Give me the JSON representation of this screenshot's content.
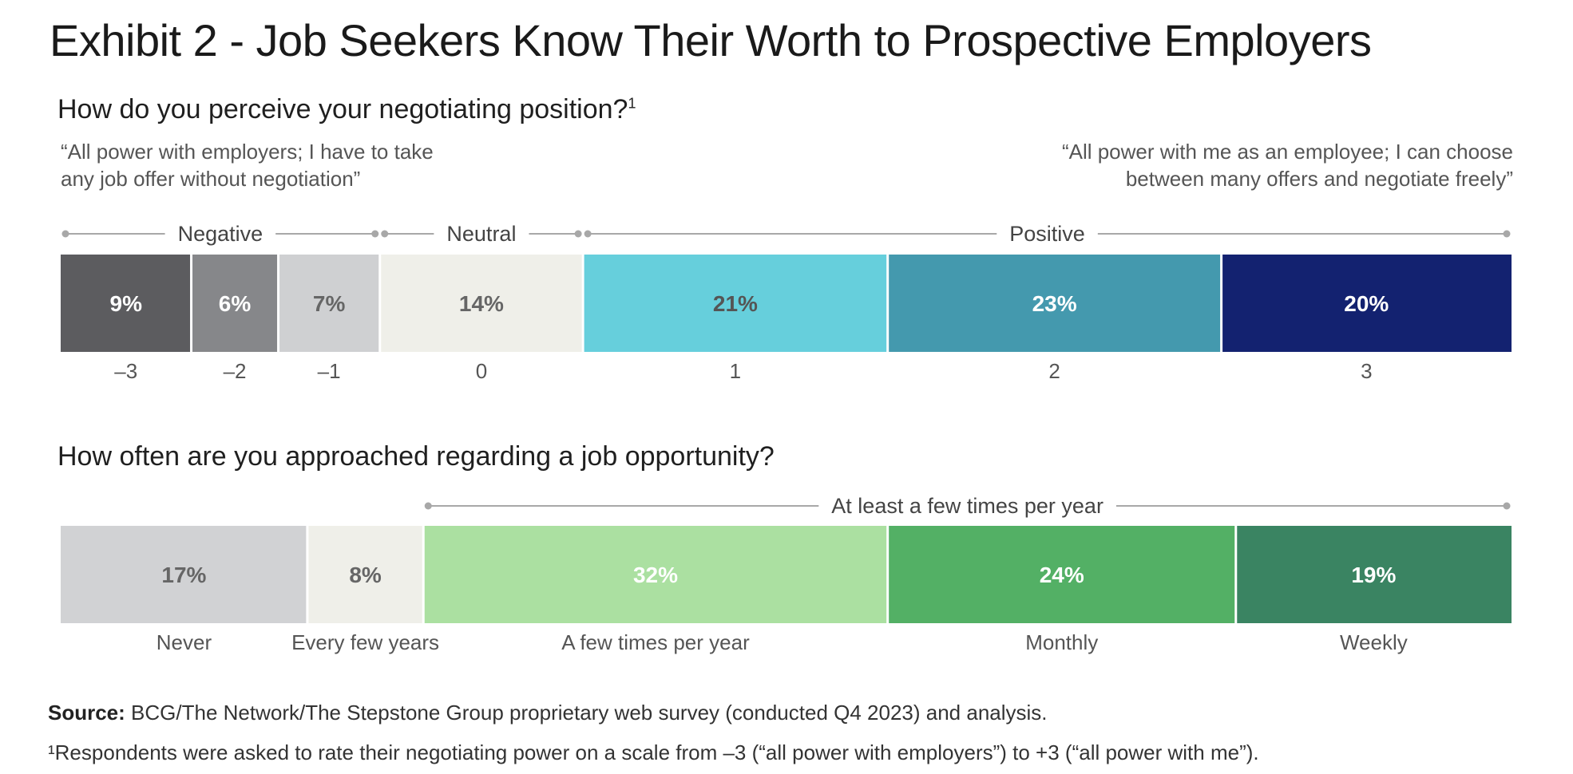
{
  "title": "Exhibit 2 - Job Seekers Know Their Worth to Prospective Employers",
  "chart_data": [
    {
      "type": "bar",
      "orientation": "horizontal-stacked",
      "question": "How do you perceive your negotiating position?",
      "question_footnote_marker": "1",
      "left_quote": [
        "“All power with employers; I have to take",
        "any job offer without negotiation”"
      ],
      "right_quote": [
        "“All power with me as an employee; I can choose",
        "between many offers and negotiate freely”"
      ],
      "categories": [
        "–3",
        "–2",
        "–1",
        "0",
        "1",
        "2",
        "3"
      ],
      "values": [
        9,
        6,
        7,
        14,
        21,
        23,
        20
      ],
      "value_labels": [
        "9%",
        "6%",
        "7%",
        "14%",
        "21%",
        "23%",
        "20%"
      ],
      "colors": [
        "#5c5c5f",
        "#86878a",
        "#cfd0d2",
        "#efefe9",
        "#66cfdc",
        "#4499ae",
        "#132270"
      ],
      "label_colors": [
        "#ffffff",
        "#ffffff",
        "#666666",
        "#666666",
        "#555555",
        "#ffffff",
        "#ffffff"
      ],
      "groups": [
        {
          "label": "Negative",
          "from": 0,
          "to": 2
        },
        {
          "label": "Neutral",
          "from": 3,
          "to": 3
        },
        {
          "label": "Positive",
          "from": 4,
          "to": 6
        }
      ]
    },
    {
      "type": "bar",
      "orientation": "horizontal-stacked",
      "question": "How often are you approached regarding a job opportunity?",
      "categories": [
        "Never",
        "Every few years",
        "A few times per year",
        "Monthly",
        "Weekly"
      ],
      "values": [
        17,
        8,
        32,
        24,
        19
      ],
      "value_labels": [
        "17%",
        "8%",
        "32%",
        "24%",
        "19%"
      ],
      "colors": [
        "#d1d2d4",
        "#efefe9",
        "#abe0a1",
        "#53b065",
        "#3a8462"
      ],
      "label_colors": [
        "#666666",
        "#666666",
        "#ffffff",
        "#ffffff",
        "#ffffff"
      ],
      "groups": [
        {
          "label": "At least a few times per year",
          "from": 2,
          "to": 4
        }
      ]
    }
  ],
  "source_label": "Source:",
  "source_text": "BCG/The Network/The Stepstone Group proprietary web survey (conducted Q4 2023) and analysis.",
  "footnote": "¹Respondents were asked to rate their negotiating power on a scale from –3 (“all power with employers”) to +3 (“all power with me”)."
}
